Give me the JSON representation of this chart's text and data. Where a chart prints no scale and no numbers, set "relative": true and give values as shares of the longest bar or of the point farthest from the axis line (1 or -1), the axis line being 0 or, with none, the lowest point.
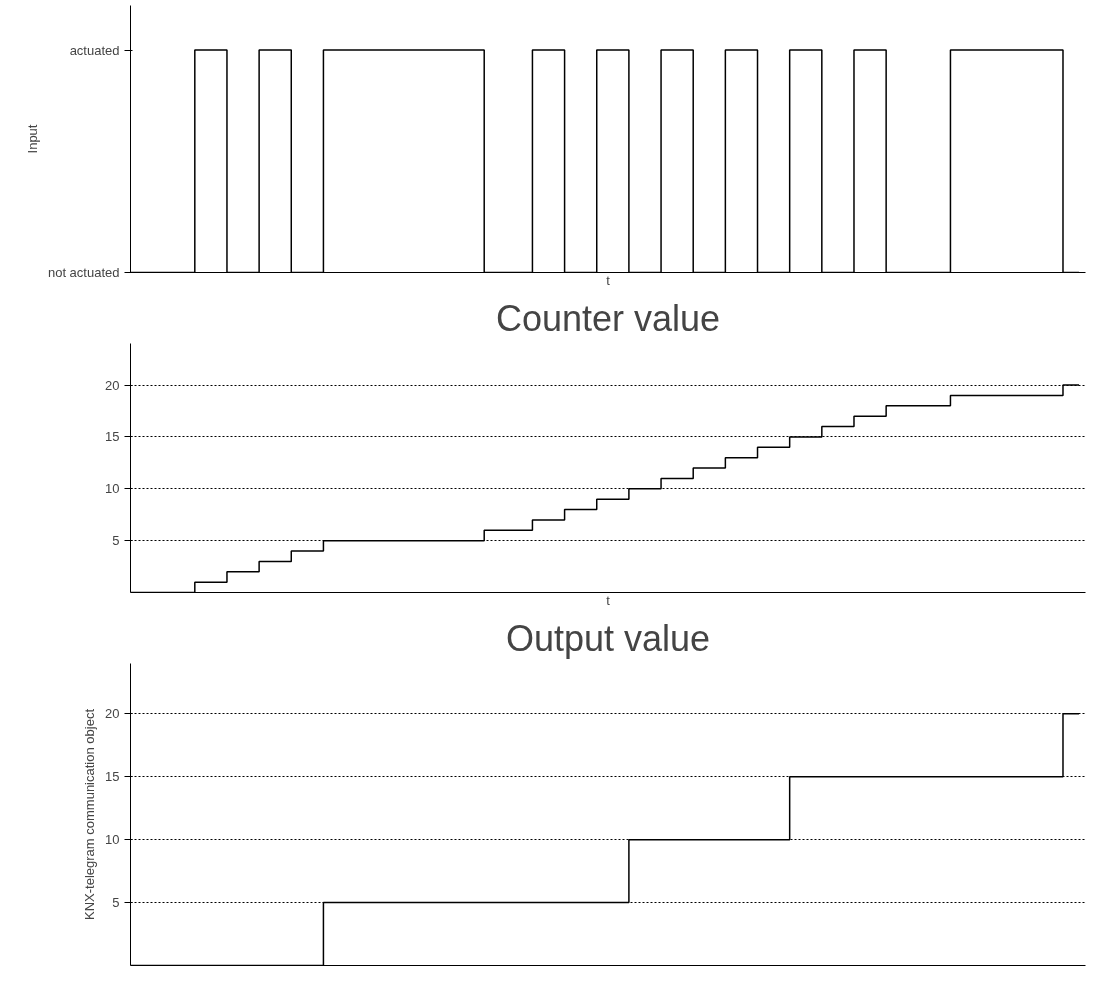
{
  "chart_data": [
    {
      "type": "step",
      "ylabel": "Input",
      "xlabel": "t",
      "categories": [
        null,
        null,
        null,
        null,
        null,
        null,
        null,
        null,
        null,
        null,
        null,
        null,
        null,
        null,
        null,
        null,
        null,
        null,
        null,
        null,
        null,
        null,
        null,
        null,
        null,
        null,
        null,
        null,
        null,
        null,
        null,
        null,
        null,
        null,
        null,
        null,
        null,
        null,
        null,
        null,
        null,
        null,
        null,
        null,
        null,
        null,
        null,
        null,
        null,
        null,
        null,
        null,
        null,
        null,
        null,
        null,
        null,
        null,
        null,
        null
      ],
      "series": [
        {
          "color": "#000000",
          "values": [
            0,
            0,
            0,
            0,
            1,
            1,
            0,
            0,
            1,
            1,
            0,
            0,
            1,
            1,
            1,
            1,
            1,
            1,
            1,
            1,
            1,
            1,
            0,
            0,
            0,
            1,
            1,
            0,
            0,
            1,
            1,
            0,
            0,
            1,
            1,
            0,
            0,
            1,
            1,
            0,
            0,
            1,
            1,
            0,
            0,
            1,
            1,
            0,
            0,
            0,
            0,
            1,
            1,
            1,
            1,
            1,
            1,
            1,
            0,
            0
          ]
        }
      ],
      "relative": true,
      "annotations": [
        "actuated",
        "not actuated"
      ],
      "grid": false
    },
    {
      "type": "step",
      "title": "Counter value",
      "xlabel": "t",
      "categories": [
        null,
        null,
        null,
        null,
        null,
        null,
        null,
        null,
        null,
        null,
        null,
        null,
        null,
        null,
        null,
        null,
        null,
        null,
        null,
        null,
        null,
        null,
        null,
        null,
        null,
        null,
        null,
        null,
        null,
        null,
        null,
        null,
        null,
        null,
        null,
        null,
        null,
        null,
        null,
        null,
        null,
        null,
        null,
        null,
        null,
        null,
        null,
        null,
        null,
        null,
        null,
        null,
        null,
        null,
        null,
        null,
        null,
        null,
        null,
        null
      ],
      "series": [
        {
          "color": "#000000",
          "values": [
            0,
            0,
            0,
            0,
            1,
            1,
            2,
            2,
            3,
            3,
            4,
            4,
            5,
            5,
            5,
            5,
            5,
            5,
            5,
            5,
            5,
            5,
            6,
            6,
            6,
            7,
            7,
            8,
            8,
            9,
            9,
            10,
            10,
            11,
            11,
            12,
            12,
            13,
            13,
            14,
            14,
            15,
            15,
            16,
            16,
            17,
            17,
            18,
            18,
            18,
            18,
            19,
            19,
            19,
            19,
            19,
            19,
            19,
            20,
            20
          ]
        }
      ],
      "ylim": [
        0,
        24
      ],
      "yticks": [
        5,
        10,
        15,
        20
      ],
      "grid": "y"
    },
    {
      "type": "step",
      "title": "Output value",
      "ylabel": "KNX-telegram communication object",
      "categories": [
        null,
        null,
        null,
        null,
        null,
        null,
        null,
        null,
        null,
        null,
        null,
        null,
        null,
        null,
        null,
        null,
        null,
        null,
        null,
        null,
        null,
        null,
        null,
        null,
        null,
        null,
        null,
        null,
        null,
        null,
        null,
        null,
        null,
        null,
        null,
        null,
        null,
        null,
        null,
        null,
        null,
        null,
        null,
        null,
        null,
        null,
        null,
        null,
        null,
        null,
        null,
        null,
        null,
        null,
        null,
        null,
        null,
        null,
        null,
        null
      ],
      "series": [
        {
          "color": "#000000",
          "values": [
            0,
            0,
            0,
            0,
            0,
            0,
            0,
            0,
            0,
            0,
            0,
            0,
            5,
            5,
            5,
            5,
            5,
            5,
            5,
            5,
            5,
            5,
            5,
            5,
            5,
            5,
            5,
            5,
            5,
            5,
            5,
            10,
            10,
            10,
            10,
            10,
            10,
            10,
            10,
            10,
            10,
            15,
            15,
            15,
            15,
            15,
            15,
            15,
            15,
            15,
            15,
            15,
            15,
            15,
            15,
            15,
            15,
            15,
            20,
            20
          ]
        }
      ],
      "ylim": [
        0,
        24
      ],
      "yticks": [
        5,
        10,
        15,
        20
      ],
      "grid": "y"
    }
  ]
}
